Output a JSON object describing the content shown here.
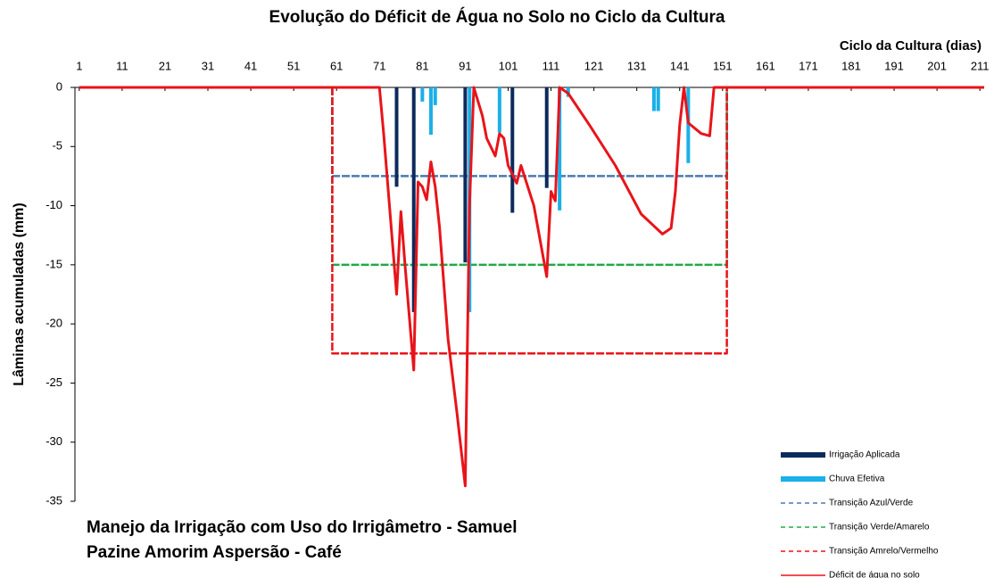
{
  "chart_data": {
    "type": "line",
    "title": "Evolução do Déficit de Água no Solo no Ciclo da Cultura",
    "x_label": "Ciclo da Cultura (dias)",
    "y_label": "Lâminas acumuladas (mm)",
    "annotation": [
      "Manejo da Irrigação com Uso do Irrigâmetro - Samuel",
      "Pazine Amorim Aspersão - Café"
    ],
    "xlim": [
      0,
      212
    ],
    "xticks": [
      1,
      11,
      21,
      31,
      41,
      51,
      61,
      71,
      81,
      91,
      101,
      111,
      121,
      131,
      141,
      151,
      161,
      171,
      181,
      191,
      201,
      211
    ],
    "ylim": [
      -35,
      0
    ],
    "yticks": [
      0,
      -5,
      -10,
      -15,
      -20,
      -25,
      -30,
      -35
    ],
    "legend": "bottom-right",
    "series": [
      {
        "name": "Irrigação Aplicada",
        "kind": "bar",
        "color": "#0d2a5c",
        "x": [
          75,
          79,
          91,
          102,
          110
        ],
        "values": [
          -8.4,
          -19,
          -14.8,
          -10.6,
          -8.5
        ]
      },
      {
        "name": "Chuva Efetiva",
        "kind": "bar",
        "color": "#1ab0e8",
        "x": [
          81,
          83,
          84,
          92,
          99,
          113,
          115,
          135,
          136,
          143
        ],
        "values": [
          -1.2,
          -4,
          -1.5,
          -19,
          -3.8,
          -10.4,
          -0.8,
          -2,
          -2,
          -6.4
        ]
      },
      {
        "name": "Transição Azul/Verde",
        "kind": "line",
        "dashed": true,
        "color": "#4a7ab0",
        "x": [
          60,
          60,
          152,
          152
        ],
        "values": [
          0,
          -7.5,
          -7.5,
          0
        ]
      },
      {
        "name": "Transição Verde/Amarelo",
        "kind": "line",
        "dashed": true,
        "color": "#22a84a",
        "x": [
          60,
          60,
          152,
          152
        ],
        "values": [
          0,
          -15,
          -15,
          0
        ]
      },
      {
        "name": "Transição Amrelo/Vermelho",
        "kind": "line",
        "dashed": true,
        "color": "#e8141a",
        "x": [
          60,
          60,
          152,
          152
        ],
        "values": [
          0,
          -22.5,
          -22.5,
          0
        ]
      },
      {
        "name": "Déficit de água no solo",
        "kind": "line",
        "dashed": false,
        "color": "#e8141a",
        "x": [
          1,
          71,
          72,
          75,
          76,
          77,
          79,
          80,
          81,
          82,
          83,
          84,
          85,
          87,
          89,
          91,
          92,
          93,
          95,
          96,
          98,
          99,
          100,
          101,
          103,
          104,
          107,
          110,
          111,
          112,
          113,
          115,
          120,
          126,
          132,
          137,
          139,
          140,
          141,
          142,
          143,
          146,
          148,
          149,
          212
        ],
        "values": [
          0,
          0,
          -4,
          -17.5,
          -10.5,
          -15.2,
          -23.9,
          -8,
          -8.4,
          -9.5,
          -6.3,
          -8.4,
          -11.8,
          -21.3,
          -27.3,
          -33.7,
          -10,
          0,
          -2.4,
          -4.3,
          -5.8,
          -3.9,
          -4.3,
          -6.6,
          -8.1,
          -6.6,
          -10,
          -16,
          -8.8,
          -9.6,
          0,
          -0.5,
          -3.2,
          -6.6,
          -10.7,
          -12.4,
          -11.9,
          -8.8,
          -3.2,
          0,
          -3,
          -3.9,
          -4.1,
          0,
          0
        ]
      }
    ]
  }
}
